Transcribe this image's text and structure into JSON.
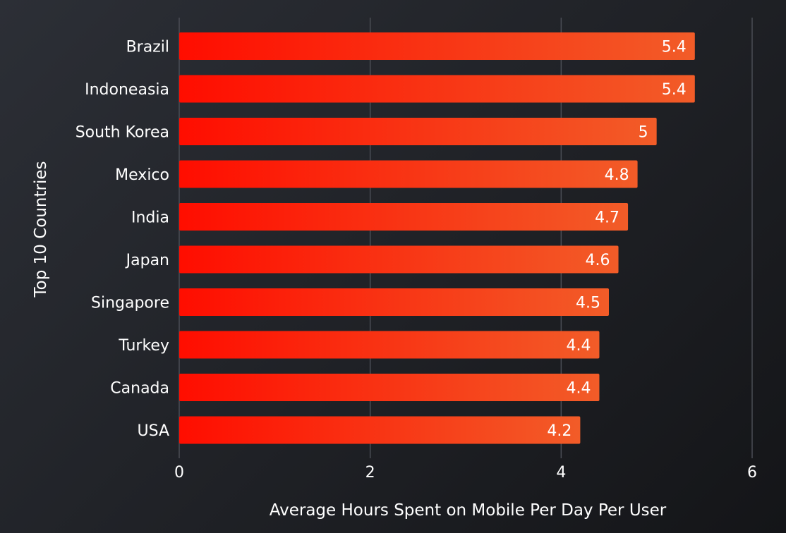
{
  "chart_data": {
    "type": "bar",
    "orientation": "horizontal",
    "title": "",
    "xlabel": "Average Hours Spent on Mobile Per Day Per User",
    "ylabel": "Top 10 Countries",
    "categories": [
      "Brazil",
      "Indoneasia",
      "South Korea",
      "Mexico",
      "India",
      "Japan",
      "Singapore",
      "Turkey",
      "Canada",
      "USA"
    ],
    "values": [
      5.4,
      5.4,
      5,
      4.8,
      4.7,
      4.6,
      4.5,
      4.4,
      4.4,
      4.2
    ],
    "data_labels": [
      "5.4",
      "5.4",
      "5",
      "4.8",
      "4.7",
      "4.6",
      "4.5",
      "4.4",
      "4.4",
      "4.2"
    ],
    "xlim": [
      0,
      6
    ],
    "xticks": [
      0,
      2,
      4,
      6
    ],
    "xtick_labels": [
      "0",
      "2",
      "4",
      "6"
    ],
    "grid": "vertical",
    "legend": "none",
    "colors": {
      "bar_start": "#ff0d00",
      "bar_end": "#f25c28",
      "grid": "#4a4d55"
    }
  }
}
